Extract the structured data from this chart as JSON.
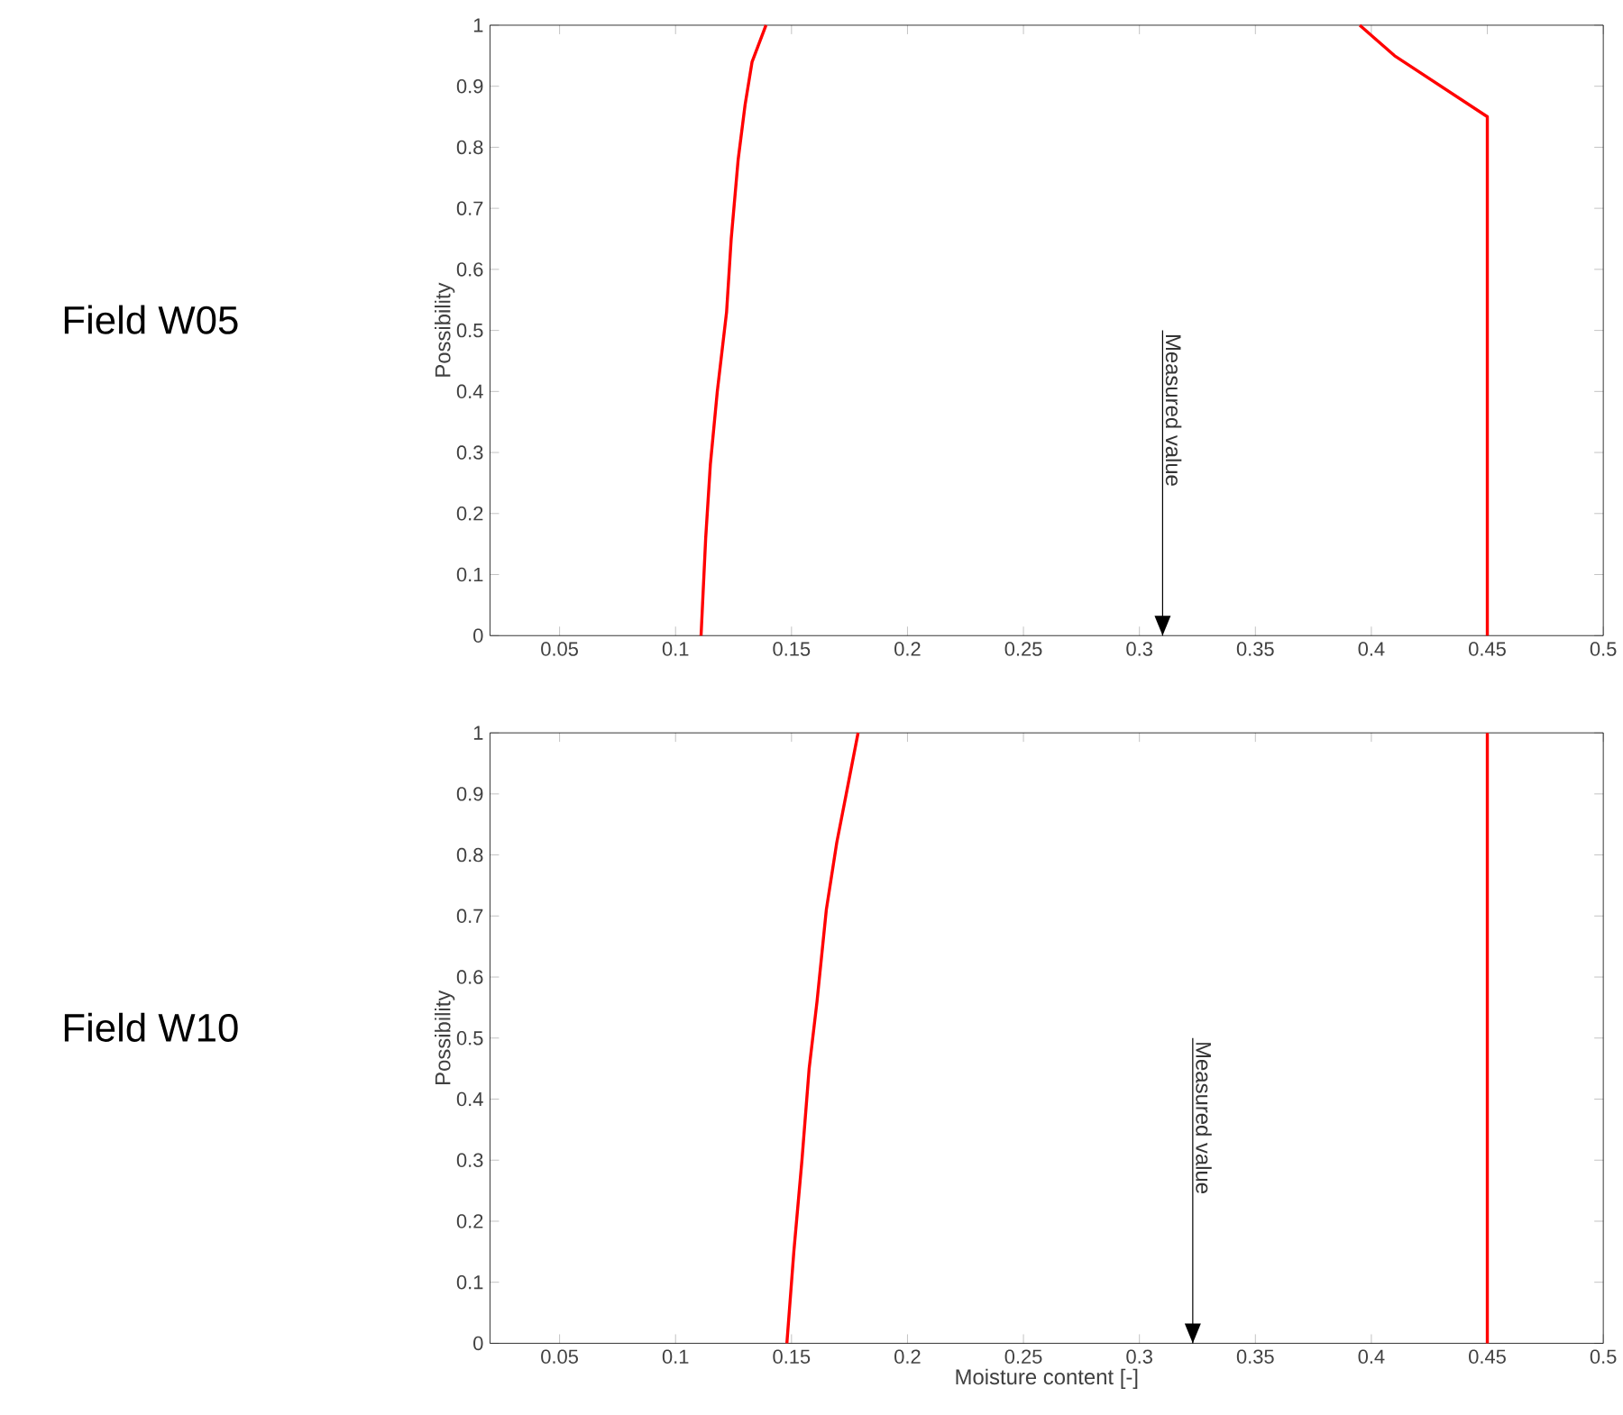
{
  "chart_data": [
    {
      "type": "line",
      "title": "Field W05",
      "ylabel": "Possibility",
      "series": [
        {
          "color": "#ff0000",
          "x": [
            0.111,
            0.113,
            0.115,
            0.118,
            0.122,
            0.124,
            0.127,
            0.13,
            0.133,
            0.139
          ],
          "values": [
            0,
            0.16,
            0.28,
            0.4,
            0.53,
            0.65,
            0.78,
            0.87,
            0.94,
            1
          ]
        },
        {
          "color": "#ff0000",
          "x": [
            0.395,
            0.41,
            0.43,
            0.45,
            0.45
          ],
          "values": [
            1,
            0.95,
            0.9,
            0.85,
            0
          ]
        }
      ],
      "ref_lines": [
        {
          "axis": "x",
          "value": 0.31,
          "label": "Measured value"
        }
      ],
      "xlim": [
        0.02,
        0.5
      ],
      "xticks": [
        0.05,
        0.1,
        0.15,
        0.2,
        0.25,
        0.3,
        0.35,
        0.4,
        0.45,
        0.5
      ],
      "ylim": [
        0,
        1
      ],
      "yticks": [
        0,
        0.1,
        0.2,
        0.3,
        0.4,
        0.5,
        0.6,
        0.7,
        0.8,
        0.9,
        1
      ],
      "marker": "none",
      "line_style": "solid"
    },
    {
      "type": "line",
      "title": "Field W10",
      "xlabel": "Moisture content [-]",
      "ylabel": "Possibility",
      "series": [
        {
          "color": "#ff0000",
          "x": [
            0.148,
            0.151,
            0.1545,
            0.1576,
            0.161,
            0.165,
            0.1695,
            0.1736,
            0.1787
          ],
          "values": [
            0,
            0.15,
            0.3,
            0.45,
            0.56,
            0.71,
            0.82,
            0.9,
            1
          ]
        },
        {
          "color": "#ff0000",
          "x": [
            0.45,
            0.45
          ],
          "values": [
            0,
            1
          ]
        }
      ],
      "ref_lines": [
        {
          "axis": "x",
          "value": 0.323,
          "label": "Measured value"
        }
      ],
      "xlim": [
        0.02,
        0.5
      ],
      "xticks": [
        0.05,
        0.1,
        0.15,
        0.2,
        0.25,
        0.3,
        0.35,
        0.4,
        0.45,
        0.5
      ],
      "ylim": [
        0,
        1
      ],
      "yticks": [
        0,
        0.1,
        0.2,
        0.3,
        0.4,
        0.5,
        0.6,
        0.7,
        0.8,
        0.9,
        1
      ],
      "marker": "none",
      "line_style": "solid"
    }
  ]
}
